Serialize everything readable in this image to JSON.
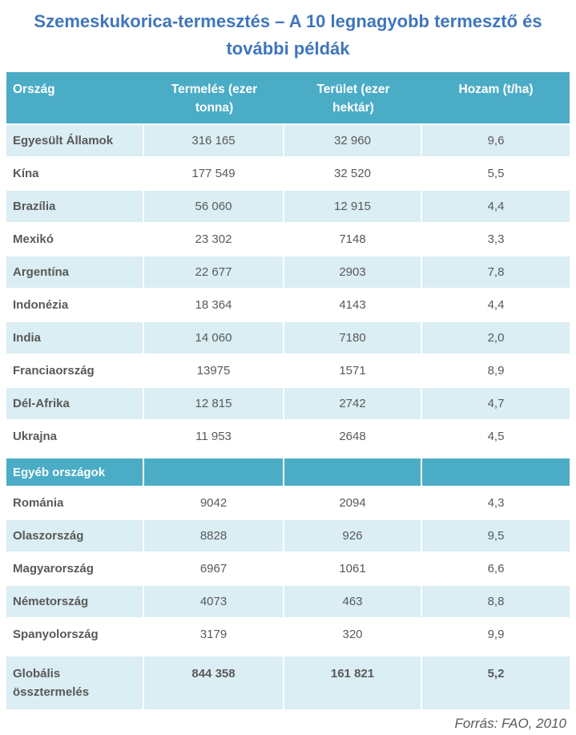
{
  "title": {
    "lines": [
      "Szemeskukorica-termesztés – A 10 legnagyobb termesztő és",
      "további példák"
    ]
  },
  "colors": {
    "header_teal": "#4BACC6",
    "row_light_blue": "#DAEEF3",
    "title_blue": "#3F76BC",
    "text_gray": "#595959"
  },
  "table": {
    "columns": [
      "Ország",
      "Termelés (ezer tonna)",
      "Terület (ezer hektár)",
      "Hozam (t/ha)"
    ],
    "top_rows": [
      {
        "country": "Egyesült Államok",
        "production": "316 165",
        "area": "32 960",
        "yield": "9,6"
      },
      {
        "country": "Kína",
        "production": "177 549",
        "area": "32 520",
        "yield": "5,5"
      },
      {
        "country": "Brazília",
        "production": "56 060",
        "area": "12 915",
        "yield": "4,4"
      },
      {
        "country": "Mexikó",
        "production": "23 302",
        "area": "7148",
        "yield": "3,3"
      },
      {
        "country": "Argentína",
        "production": "22 677",
        "area": "2903",
        "yield": "7,8"
      },
      {
        "country": "Indonézia",
        "production": "18 364",
        "area": "4143",
        "yield": "4,4"
      },
      {
        "country": "India",
        "production": "14 060",
        "area": "7180",
        "yield": "2,0"
      },
      {
        "country": "Franciaország",
        "production": "13975",
        "area": "1571",
        "yield": "8,9"
      },
      {
        "country": "Dél-Afrika",
        "production": "12 815",
        "area": "2742",
        "yield": "4,7"
      },
      {
        "country": "Ukrajna",
        "production": "11 953",
        "area": "2648",
        "yield": "4,5"
      }
    ],
    "section_header": "Egyéb országok",
    "other_rows": [
      {
        "country": "Románia",
        "production": "9042",
        "area": "2094",
        "yield": "4,3"
      },
      {
        "country": "Olaszország",
        "production": "8828",
        "area": "926",
        "yield": "9,5"
      },
      {
        "country": "Magyarország",
        "production": "6967",
        "area": "1061",
        "yield": "6,6"
      },
      {
        "country": "Németország",
        "production": "4073",
        "area": "463",
        "yield": "8,8"
      },
      {
        "country": "Spanyolország",
        "production": "3179",
        "area": "320",
        "yield": "9,9"
      }
    ],
    "total_row": {
      "country": "Globális össztermelés",
      "production": "844 358",
      "area": "161 821",
      "yield": "5,2"
    }
  },
  "footer": {
    "source": "Forrás: FAO, 2010"
  }
}
